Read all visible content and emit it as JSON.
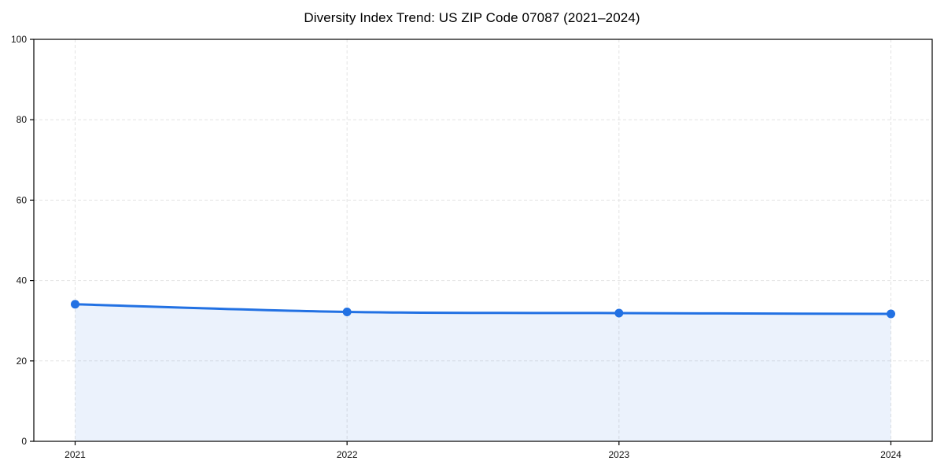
{
  "chart_data": {
    "type": "area",
    "title": "Diversity Index Trend: US ZIP Code 07087 (2021–2024)",
    "categories": [
      "2021",
      "2022",
      "2023",
      "2024"
    ],
    "series": [
      {
        "name": "Diversity Index",
        "values": [
          34.1,
          32.2,
          31.9,
          31.7
        ]
      }
    ],
    "xlabel": "",
    "ylabel": "",
    "ylim": [
      0,
      100
    ],
    "yticks": [
      0,
      20,
      40,
      60,
      80,
      100
    ],
    "grid": true,
    "grid_style": "dashed",
    "legend": false,
    "marker": "circle",
    "colors": {
      "line": "#2271e3",
      "fill": "rgba(34,113,227,0.09)",
      "grid": "#e3e3e3",
      "axis": "#000000",
      "text": "#111111"
    }
  }
}
